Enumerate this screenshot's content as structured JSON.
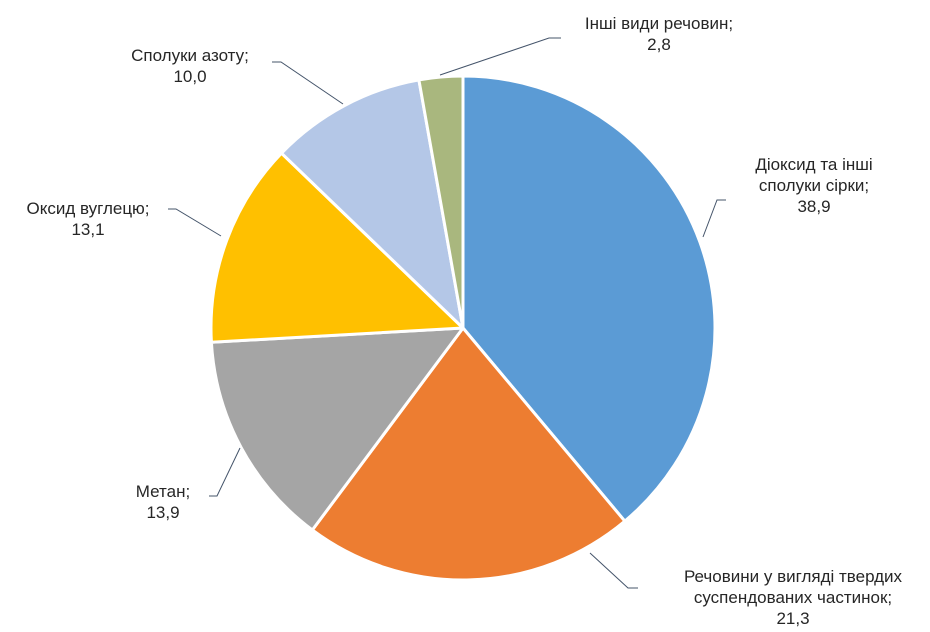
{
  "chart_data": {
    "type": "pie",
    "title": "",
    "legend": "none",
    "start_angle_deg": 0,
    "direction": "clockwise",
    "slices": [
      {
        "label_lines": [
          "Діоксид та інші",
          "сполуки сірки;"
        ],
        "value_text": "38,9",
        "value": 38.9,
        "color": "#5B9BD5"
      },
      {
        "label_lines": [
          "Речовини у вигляді твердих",
          "суспендованих частинок;"
        ],
        "value_text": "21,3",
        "value": 21.3,
        "color": "#ED7D31"
      },
      {
        "label_lines": [
          "Метан;"
        ],
        "value_text": "13,9",
        "value": 13.9,
        "color": "#A5A5A5"
      },
      {
        "label_lines": [
          "Оксид вуглецю;"
        ],
        "value_text": "13,1",
        "value": 13.1,
        "color": "#FFC000"
      },
      {
        "label_lines": [
          "Сполуки азоту;"
        ],
        "value_text": "10,0",
        "value": 10.0,
        "color": "#B4C7E7"
      },
      {
        "label_lines": [
          "Інші види речовин;"
        ],
        "value_text": "2,8",
        "value": 2.8,
        "color": "#A9B77E"
      }
    ],
    "leader_line_color": "#44546A"
  }
}
